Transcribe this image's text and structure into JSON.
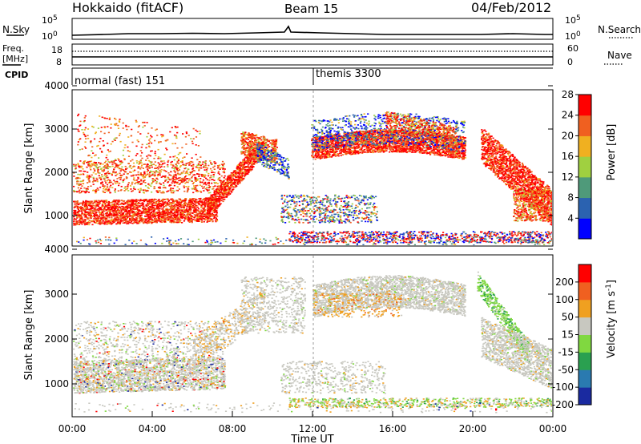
{
  "header": {
    "station": "Hokkaido (fitACF)",
    "beam": "Beam 15",
    "date": "04/Feb/2012"
  },
  "top_panels": {
    "nsky_label": "N.Sky",
    "nsky_ticks": [
      "10^5",
      "10^0"
    ],
    "nsearch_ticks": [
      "10^5",
      "10^0"
    ],
    "nsearch_label": "N.Search",
    "freq_label_1": "Freq.",
    "freq_label_2": "[MHz]",
    "freq_ticks": [
      "18",
      "8"
    ],
    "nave_ticks": [
      "60",
      "0"
    ],
    "nave_label": "Nave",
    "cpid_label": "CPID",
    "programs": [
      {
        "name": "normal (fast) 151"
      },
      {
        "name": "themis 3300"
      }
    ]
  },
  "chart_data": [
    {
      "type": "heatmap",
      "ylabel": "Slant Range [km]",
      "yticks": [
        "1000",
        "2000",
        "3000",
        "4000"
      ],
      "colorbar_label": "Power [dB]",
      "colorbar_ticks": [
        "4",
        "8",
        "12",
        "16",
        "20",
        "24",
        "28"
      ],
      "colors": [
        "#0000ff",
        "#2b62b0",
        "#4f9a7a",
        "#a0d040",
        "#f0b020",
        "#f06020",
        "#ff0000"
      ]
    },
    {
      "type": "heatmap",
      "ylabel": "Slant Range [km]",
      "yticks": [
        "1000",
        "2000",
        "3000",
        "4000"
      ],
      "xlabel": "Time UT",
      "xticks": [
        "00:00",
        "04:00",
        "08:00",
        "12:00",
        "16:00",
        "20:00",
        "00:00"
      ],
      "colorbar_label": "Velocity [m s",
      "colorbar_label_sup": "-1",
      "colorbar_label_end": "]",
      "colorbar_ticks": [
        "200",
        "100",
        "50",
        "15",
        "-15",
        "-50",
        "-100",
        "-200"
      ],
      "colors": [
        "#1a2aa0",
        "#2a7ab0",
        "#2aa050",
        "#80d840",
        "#c8c8c0",
        "#f0a020",
        "#f06020",
        "#ff0000"
      ]
    }
  ]
}
